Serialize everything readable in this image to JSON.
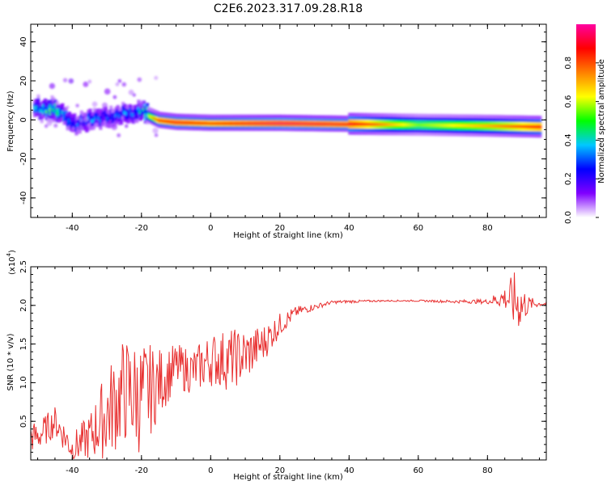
{
  "title": "C2E6.2023.317.09.28.R18",
  "colors": {
    "snr_line": "#e83030",
    "frame": "#000000"
  },
  "colorbar": {
    "label": "Normalized spectral amplitude",
    "ticks": [
      "0.0",
      "0.2",
      "0.4",
      "0.6",
      "0.8"
    ],
    "range": [
      0,
      1
    ],
    "colormap": [
      "#ffffff",
      "#8000ff",
      "#0000ff",
      "#00c8ff",
      "#00ff00",
      "#ffff00",
      "#ff8000",
      "#ff0000",
      "#ff00a0"
    ]
  },
  "chart_data": [
    {
      "type": "heatmap",
      "xlabel": "Height of straight line (km)",
      "ylabel": "Frequency (Hz)",
      "xlim": [
        -52,
        97
      ],
      "ylim": [
        -50,
        49
      ],
      "xticks": [
        "-40",
        "-20",
        "0",
        "20",
        "40",
        "60",
        "80"
      ],
      "yticks": [
        "-40",
        "-20",
        "0",
        "20",
        "40"
      ],
      "ridge": {
        "x": [
          -50,
          -45,
          -40,
          -35,
          -30,
          -25,
          -20,
          -15,
          -10,
          0,
          20,
          40,
          60,
          80,
          95
        ],
        "freq": [
          6,
          6,
          -2,
          0,
          2,
          4,
          4,
          0,
          -1,
          -1.5,
          -1.5,
          -2,
          -2.5,
          -3,
          -3.5
        ],
        "amplitude": [
          0.45,
          0.55,
          0.3,
          0.35,
          0.3,
          0.35,
          0.4,
          0.85,
          0.9,
          0.85,
          0.95,
          0.9,
          0.55,
          0.7,
          0.85
        ]
      }
    },
    {
      "type": "line",
      "xlabel": "Height of straight line (km)",
      "ylabel": "SNR (10 * v/v)",
      "yscale_label": "(x10",
      "yscale_exp": "4",
      "xlim": [
        -52,
        97
      ],
      "ylim": [
        0,
        2.5
      ],
      "xticks": [
        "-40",
        "-20",
        "0",
        "20",
        "40",
        "60",
        "80"
      ],
      "yticks": [
        "0.5",
        "1.0",
        "1.5",
        "2.0",
        "2.5"
      ],
      "series": [
        {
          "x": [
            -50,
            -45,
            -40,
            -35,
            -30,
            -25,
            -20,
            -15,
            -10,
            -5,
            0,
            5,
            10,
            15,
            20,
            25,
            30,
            35,
            40,
            50,
            60,
            70,
            80,
            85,
            88,
            90,
            92,
            95
          ],
          "y": [
            0.3,
            0.5,
            0.15,
            0.3,
            0.6,
            0.9,
            0.8,
            1.0,
            1.2,
            1.15,
            1.3,
            1.3,
            1.35,
            1.5,
            1.75,
            1.92,
            1.98,
            2.04,
            2.05,
            2.06,
            2.06,
            2.05,
            2.05,
            2.1,
            2.05,
            2.0,
            2.02,
            2.02
          ],
          "noise": [
            0.2,
            0.2,
            0.2,
            0.3,
            0.6,
            0.7,
            0.75,
            0.45,
            0.3,
            0.3,
            0.35,
            0.4,
            0.35,
            0.25,
            0.15,
            0.07,
            0.04,
            0.02,
            0.02,
            0.01,
            0.01,
            0.02,
            0.03,
            0.15,
            0.4,
            0.3,
            0.1,
            0.03
          ]
        }
      ]
    }
  ]
}
